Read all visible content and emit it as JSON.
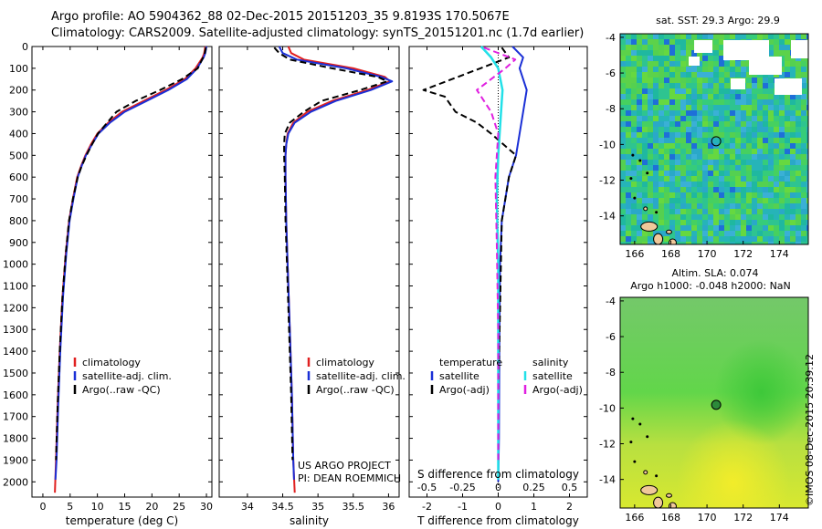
{
  "header": {
    "line1": "Argo profile: AO 5904362_88 02-Dec-2015 20151203_35 9.8193S 170.5067E",
    "line2": "Climatology: CARS2009. Satellite-adjusted climatology: synTS_20151201.nc (1.7d earlier)"
  },
  "colors": {
    "climatology": "#e02020",
    "satellite": "#1a2fd6",
    "argo": "#000000",
    "sal_sat": "#22e0e8",
    "sal_argo": "#e020e0"
  },
  "chart_data": [
    {
      "type": "line",
      "name": "temperature",
      "xlabel": "temperature (deg C)",
      "ylabel": "",
      "xlim": [
        -2,
        31
      ],
      "ylim": [
        2070,
        0
      ],
      "xticks": [
        "0",
        "5",
        "10",
        "15",
        "20",
        "25",
        "30"
      ],
      "xtick_values": [
        0,
        5,
        10,
        15,
        20,
        25,
        30
      ],
      "yticks": [
        "0",
        "100",
        "200",
        "300",
        "400",
        "500",
        "600",
        "700",
        "800",
        "900",
        "1000",
        "1100",
        "1200",
        "1300",
        "1400",
        "1500",
        "1600",
        "1700",
        "1800",
        "1900",
        "2000"
      ],
      "ytick_values": [
        0,
        100,
        200,
        300,
        400,
        500,
        600,
        700,
        800,
        900,
        1000,
        1100,
        1200,
        1300,
        1400,
        1500,
        1600,
        1700,
        1800,
        1900,
        2000
      ],
      "legend": [
        "climatology",
        "satellite-adj. clim.",
        "Argo(..raw -QC)"
      ],
      "series": [
        {
          "name": "climatology",
          "x": [
            29.8,
            29.6,
            29.3,
            28.0,
            26.0,
            22.5,
            18.5,
            14.5,
            12.0,
            10.0,
            8.8,
            7.8,
            7.0,
            6.3,
            5.5,
            4.8,
            4.2,
            3.6,
            3.1,
            2.7,
            2.4,
            2.2
          ],
          "y": [
            0,
            30,
            50,
            100,
            150,
            200,
            250,
            300,
            350,
            400,
            450,
            500,
            550,
            600,
            700,
            800,
            950,
            1150,
            1400,
            1650,
            1900,
            2050
          ]
        },
        {
          "name": "satellite-adj. clim.",
          "x": [
            30.0,
            29.8,
            29.5,
            28.3,
            26.4,
            23.0,
            19.0,
            15.0,
            12.3,
            10.2,
            9.0,
            7.9,
            7.1,
            6.4,
            5.6,
            4.9,
            4.3,
            3.7,
            3.2,
            2.8,
            2.5,
            2.3
          ],
          "y": [
            0,
            30,
            50,
            100,
            150,
            200,
            250,
            300,
            350,
            400,
            450,
            500,
            550,
            600,
            700,
            800,
            950,
            1150,
            1400,
            1650,
            1900,
            1990
          ]
        },
        {
          "name": "Argo(..raw -QC)",
          "x": [
            29.9,
            29.7,
            29.4,
            28.4,
            25.5,
            21.5,
            17.0,
            13.5,
            11.8,
            10.1,
            9.0,
            8.0,
            7.1,
            6.4,
            5.5,
            4.8,
            4.2,
            3.6,
            3.1,
            2.7,
            2.4
          ],
          "y": [
            5,
            30,
            50,
            100,
            150,
            200,
            250,
            300,
            350,
            400,
            450,
            500,
            550,
            600,
            700,
            800,
            950,
            1150,
            1400,
            1650,
            1900
          ]
        }
      ]
    },
    {
      "type": "line",
      "name": "salinity",
      "xlabel": "salinity",
      "xlim": [
        33.6,
        36.15
      ],
      "ylim": [
        2070,
        0
      ],
      "xticks": [
        "34",
        "34.5",
        "35",
        "35.5",
        "36"
      ],
      "xtick_values": [
        34,
        34.5,
        35,
        35.5,
        36
      ],
      "legend": [
        "climatology",
        "satellite-adj. clim.",
        "Argo(..raw -QC)"
      ],
      "annotation_lines": [
        "US ARGO PROJECT",
        "PI: DEAN ROEMMICH"
      ],
      "series": [
        {
          "name": "climatology",
          "x": [
            34.58,
            34.62,
            34.8,
            35.5,
            35.95,
            36.02,
            35.7,
            35.2,
            34.85,
            34.65,
            34.57,
            34.55,
            34.54,
            34.54,
            34.55,
            34.57,
            34.6,
            34.63,
            34.65,
            34.67
          ],
          "y": [
            0,
            30,
            60,
            100,
            140,
            160,
            200,
            250,
            300,
            350,
            400,
            450,
            500,
            600,
            800,
            1000,
            1300,
            1600,
            1900,
            2050
          ]
        },
        {
          "name": "satellite-adj. clim.",
          "x": [
            34.45,
            34.5,
            34.7,
            35.4,
            35.9,
            36.05,
            35.75,
            35.25,
            34.9,
            34.67,
            34.58,
            34.55,
            34.54,
            34.54,
            34.55,
            34.57,
            34.6,
            34.63,
            34.65,
            34.66
          ],
          "y": [
            0,
            30,
            60,
            100,
            140,
            160,
            200,
            250,
            300,
            350,
            400,
            450,
            500,
            600,
            800,
            1000,
            1300,
            1600,
            1900,
            1990
          ]
        },
        {
          "name": "Argo(..raw -QC)",
          "x": [
            34.38,
            34.45,
            34.6,
            35.2,
            35.85,
            35.98,
            35.6,
            35.05,
            34.8,
            34.6,
            34.53,
            34.52,
            34.52,
            34.53,
            34.54,
            34.56,
            34.59,
            34.62,
            34.64
          ],
          "y": [
            5,
            30,
            60,
            100,
            140,
            160,
            200,
            250,
            300,
            350,
            400,
            450,
            500,
            600,
            800,
            1000,
            1300,
            1600,
            1900
          ]
        }
      ]
    },
    {
      "type": "line",
      "name": "differences",
      "xlabel": "T difference from climatology",
      "xlabel_top": "S difference from climatology",
      "xlim": [
        -2.5,
        2.5
      ],
      "ylim": [
        2070,
        0
      ],
      "xticks": [
        "-2",
        "-1",
        "0",
        "1",
        "2"
      ],
      "xtick_values": [
        -2,
        -1,
        0,
        1,
        2
      ],
      "xticks_top": [
        "-0.5",
        "-0.25",
        "0",
        "0.25",
        "0.5"
      ],
      "xtick_top_values": [
        -0.5,
        -0.25,
        0,
        0.25,
        0.5
      ],
      "legend": [
        "temperature",
        "salinity",
        "satellite",
        "Argo(-adj)",
        "satellite",
        "Argo(-adj)"
      ],
      "series": [
        {
          "name": "T satellite",
          "x": [
            0.4,
            0.7,
            0.6,
            0.8,
            0.7,
            0.6,
            0.5,
            0.3,
            0.2,
            0.1,
            0.05,
            0.03,
            0.02,
            0.0
          ],
          "y": [
            0,
            50,
            100,
            200,
            300,
            400,
            500,
            600,
            700,
            800,
            1000,
            1400,
            1800,
            2000
          ]
        },
        {
          "name": "T Argo(-adj)",
          "x": [
            0.1,
            0.3,
            -0.5,
            -2.1,
            -1.5,
            -1.2,
            -0.6,
            -0.2,
            0.5,
            0.3,
            0.1,
            0.05,
            0.0,
            0.0
          ],
          "y": [
            5,
            50,
            100,
            200,
            230,
            300,
            350,
            400,
            500,
            600,
            800,
            1200,
            1600,
            1900
          ]
        },
        {
          "name": "S satellite",
          "x": [
            -0.12,
            -0.05,
            0.0,
            0.03,
            0.02,
            0.0,
            -0.01,
            0.0,
            0.0,
            0.0
          ],
          "y": [
            0,
            50,
            100,
            200,
            300,
            500,
            700,
            1000,
            1500,
            1990
          ]
        },
        {
          "name": "S Argo(-adj)",
          "x": [
            -0.1,
            0.12,
            0.05,
            -0.15,
            -0.05,
            0.0,
            -0.02,
            -0.01,
            0.0,
            0.0
          ],
          "y": [
            5,
            60,
            100,
            200,
            300,
            400,
            600,
            900,
            1300,
            1900
          ]
        }
      ]
    },
    {
      "type": "heatmap",
      "name": "sst-map",
      "title": "sat. SST: 29.3 Argo: 29.9",
      "xlim": [
        165.2,
        175.6
      ],
      "ylim": [
        -15.6,
        -3.8
      ],
      "xticks": [
        "166",
        "168",
        "170",
        "172",
        "174"
      ],
      "xtick_values": [
        166,
        168,
        170,
        172,
        174
      ],
      "yticks": [
        "-4",
        "-6",
        "-8",
        "-10",
        "-12",
        "-14"
      ],
      "ytick_values": [
        -4,
        -6,
        -8,
        -10,
        -12,
        -14
      ],
      "marker": {
        "lon": 170.5067,
        "lat": -9.8193
      }
    },
    {
      "type": "heatmap",
      "name": "sla-map",
      "title_lines": [
        "Altim. SLA: 0.074",
        "Argo h1000: -0.048 h2000: NaN"
      ],
      "xlim": [
        165.2,
        175.6
      ],
      "ylim": [
        -15.6,
        -3.8
      ],
      "xticks": [
        "166",
        "168",
        "170",
        "172",
        "174"
      ],
      "xtick_values": [
        166,
        168,
        170,
        172,
        174
      ],
      "yticks": [
        "-4",
        "-6",
        "-8",
        "-10",
        "-12",
        "-14"
      ],
      "ytick_values": [
        -4,
        -6,
        -8,
        -10,
        -12,
        -14
      ],
      "marker": {
        "lon": 170.5067,
        "lat": -9.8193
      }
    }
  ],
  "credit": "©IMOS 08-Dec-2015 20:39:12"
}
